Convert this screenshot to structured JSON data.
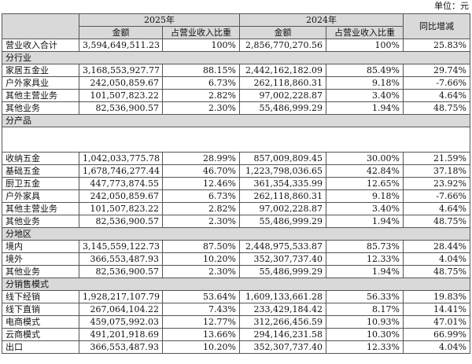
{
  "unit_label": "单位：元",
  "headers": {
    "year_2025": "2025年",
    "year_2024": "2024年",
    "yoy": "同比增减",
    "amount": "金额",
    "share": "占营业收入比重"
  },
  "total": {
    "label": "营业收入合计",
    "amt_2025": "3,594,649,511.23",
    "pct_2025": "100%",
    "amt_2024": "2,856,770,270.56",
    "pct_2024": "100%",
    "yoy": "25.83%"
  },
  "sections": [
    {
      "title": "分行业",
      "rows": [
        [
          "家居五金业",
          "3,168,553,927.77",
          "88.15%",
          "2,442,162,182.09",
          "85.49%",
          "29.74%"
        ],
        [
          "户外家具业",
          "242,050,859.67",
          "6.73%",
          "262,118,860.31",
          "9.18%",
          "-7.66%"
        ],
        [
          "其他主营业务",
          "101,507,823.22",
          "2.82%",
          "97,002,228.87",
          "3.40%",
          "4.64%"
        ],
        [
          "其他业务",
          "82,536,900.57",
          "2.30%",
          "55,486,999.29",
          "1.94%",
          "48.75%"
        ]
      ]
    },
    {
      "title": "分产品",
      "rows": [
        [
          "收纳五金",
          "1,042,033,775.78",
          "28.99%",
          "857,009,809.45",
          "30.00%",
          "21.59%"
        ],
        [
          "基础五金",
          "1,678,746,277.44",
          "46.70%",
          "1,223,798,036.65",
          "42.84%",
          "37.18%"
        ],
        [
          "厨卫五金",
          "447,773,874.55",
          "12.46%",
          "361,354,335.99",
          "12.65%",
          "23.92%"
        ],
        [
          "户外家具",
          "242,050,859.67",
          "6.73%",
          "262,118,860.31",
          "9.18%",
          "-7.66%"
        ],
        [
          "其他主营业务",
          "101,507,823.22",
          "2.82%",
          "97,002,228.87",
          "3.40%",
          "4.64%"
        ],
        [
          "其他业务",
          "82,536,900.57",
          "2.30%",
          "55,486,999.29",
          "1.94%",
          "48.75%"
        ]
      ]
    },
    {
      "title": "分地区",
      "rows": [
        [
          "境内",
          "3,145,559,122.73",
          "87.50%",
          "2,448,975,533.87",
          "85.73%",
          "28.44%"
        ],
        [
          "境外",
          "366,553,487.93",
          "10.20%",
          "352,307,737.40",
          "12.33%",
          "4.04%"
        ],
        [
          "其他业务",
          "82,536,900.57",
          "2.30%",
          "55,486,999.29",
          "1.94%",
          "48.75%"
        ]
      ]
    },
    {
      "title": "分销售模式",
      "rows": [
        [
          "线下经销",
          "1,928,217,107.79",
          "53.64%",
          "1,609,133,661.28",
          "56.33%",
          "19.83%"
        ],
        [
          "线下直销",
          "267,064,104.22",
          "7.43%",
          "233,429,184.42",
          "8.17%",
          "14.41%"
        ],
        [
          "电商模式",
          "459,075,992.03",
          "12.77%",
          "312,266,456.59",
          "10.93%",
          "47.01%"
        ],
        [
          "云商模式",
          "491,201,918.69",
          "13.66%",
          "294,146,231.58",
          "10.30%",
          "66.99%"
        ],
        [
          "出口",
          "366,553,487.93",
          "10.20%",
          "352,307,737.40",
          "12.33%",
          "4.04%"
        ]
      ]
    }
  ]
}
